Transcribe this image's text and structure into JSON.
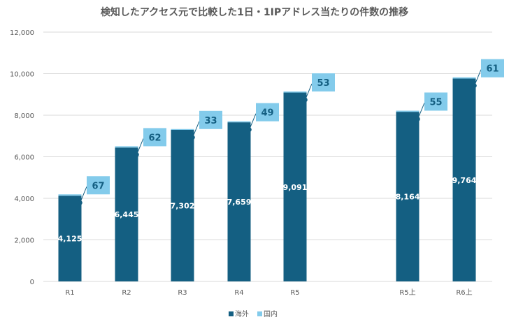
{
  "chart_data": {
    "type": "bar",
    "stacked": true,
    "title": "検知したアクセス元で比較した1日・1IPアドレス当たりの件数の推移",
    "categories": [
      "R1",
      "R2",
      "R3",
      "R4",
      "R5",
      "R5上",
      "R6上"
    ],
    "series": [
      {
        "name": "海外",
        "values": [
          4125,
          6445,
          7302,
          7659,
          9091,
          8164,
          9764
        ],
        "color": "#145f82"
      },
      {
        "name": "国内",
        "values": [
          67,
          62,
          33,
          49,
          53,
          55,
          61
        ],
        "color": "#83cbeb"
      }
    ],
    "y_ticks": [
      "0",
      "2,000",
      "4,000",
      "6,000",
      "8,000",
      "10,000",
      "12,000"
    ],
    "ylim": [
      0,
      12000
    ],
    "grid": true,
    "legend_position": "bottom",
    "overseas_labels": [
      "4,125",
      "6,445",
      "7,302",
      "7,659",
      "9,091",
      "8,164",
      "9,764"
    ],
    "domestic_labels": [
      "67",
      "62",
      "33",
      "49",
      "53",
      "55",
      "61"
    ]
  }
}
